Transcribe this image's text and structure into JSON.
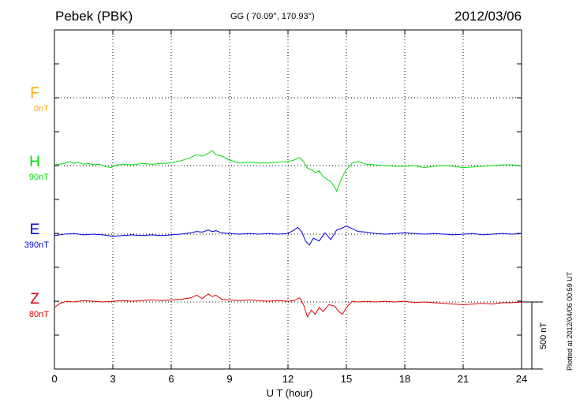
{
  "header": {
    "station": "Pebek (PBK)",
    "coords": "GG ( 70.09°, 170.93°)",
    "date": "2012/03/06"
  },
  "plotted_note": "Plotted at 2012/04/06 00:59 UT",
  "chart_data": {
    "type": "line",
    "xlabel": "U T (hour)",
    "xlim": [
      0,
      24
    ],
    "x_ticks": [
      0,
      3,
      6,
      9,
      12,
      15,
      18,
      21,
      24
    ],
    "tick_labels": [
      "0",
      "3",
      "6",
      "9",
      "12",
      "15",
      "18",
      "21",
      "24"
    ],
    "scale_bar": {
      "label": "500 nT",
      "value_nT": 500
    },
    "grid": true,
    "series": [
      {
        "name": "F",
        "offset_label": "0nT",
        "color": "#FFA500",
        "x": [],
        "y": []
      },
      {
        "name": "H",
        "offset_label": "90nT",
        "color": "#00E000",
        "x": [
          0,
          0.5,
          0.8,
          1.0,
          1.2,
          1.5,
          1.8,
          2.0,
          2.3,
          2.6,
          2.9,
          3.2,
          3.5,
          4.0,
          4.5,
          5.0,
          5.5,
          6.0,
          6.5,
          7.0,
          7.3,
          7.6,
          7.9,
          8.1,
          8.3,
          8.6,
          9.0,
          9.5,
          10.0,
          10.5,
          11.0,
          11.5,
          12.0,
          12.3,
          12.6,
          12.8,
          13.0,
          13.2,
          13.4,
          13.6,
          13.8,
          14.0,
          14.2,
          14.4,
          14.5,
          14.6,
          14.8,
          15.0,
          15.3,
          15.6,
          16.0,
          16.5,
          17.0,
          17.5,
          18.0,
          18.5,
          19.0,
          19.5,
          20.0,
          20.5,
          21.0,
          21.5,
          22.0,
          22.5,
          23.0,
          23.5,
          24.0
        ],
        "y": [
          5,
          15,
          30,
          15,
          25,
          10,
          15,
          5,
          10,
          -5,
          -15,
          5,
          10,
          5,
          15,
          10,
          15,
          20,
          35,
          60,
          80,
          70,
          90,
          110,
          80,
          70,
          40,
          20,
          25,
          20,
          20,
          25,
          30,
          40,
          60,
          30,
          -20,
          -30,
          -50,
          -40,
          -80,
          -100,
          -120,
          -160,
          -190,
          -150,
          -80,
          -30,
          20,
          30,
          10,
          5,
          0,
          -5,
          -5,
          0,
          -15,
          -5,
          0,
          -5,
          -15,
          -10,
          -5,
          0,
          5,
          5,
          0
        ]
      },
      {
        "name": "E",
        "offset_label": "390nT",
        "color": "#0000DD",
        "x": [
          0,
          0.5,
          1.0,
          1.5,
          2.0,
          2.5,
          3.0,
          3.5,
          4.0,
          4.5,
          5.0,
          5.5,
          6.0,
          6.5,
          7.0,
          7.3,
          7.6,
          7.9,
          8.1,
          8.3,
          8.6,
          9.0,
          9.5,
          10.0,
          10.5,
          11.0,
          11.5,
          12.0,
          12.3,
          12.5,
          12.7,
          12.9,
          13.1,
          13.3,
          13.6,
          13.9,
          14.2,
          14.5,
          14.7,
          15.0,
          15.3,
          15.6,
          16.0,
          16.5,
          17.0,
          17.5,
          18.0,
          18.5,
          19.0,
          19.5,
          20.0,
          20.5,
          21.0,
          21.5,
          22.0,
          22.5,
          23.0,
          23.5,
          24.0
        ],
        "y": [
          -10,
          0,
          5,
          -5,
          0,
          -5,
          -15,
          -10,
          -5,
          -10,
          -5,
          -10,
          -5,
          0,
          10,
          20,
          15,
          30,
          20,
          25,
          10,
          5,
          0,
          5,
          0,
          5,
          0,
          5,
          30,
          50,
          20,
          -50,
          -80,
          -30,
          -50,
          10,
          -40,
          30,
          40,
          60,
          40,
          20,
          15,
          5,
          0,
          5,
          10,
          5,
          0,
          5,
          0,
          -5,
          0,
          5,
          -5,
          0,
          5,
          0,
          5
        ]
      },
      {
        "name": "Z",
        "offset_label": "80nT",
        "color": "#E00000",
        "x": [
          0,
          0.3,
          0.6,
          1.0,
          1.5,
          2.0,
          2.5,
          3.0,
          3.5,
          4.0,
          4.5,
          5.0,
          5.5,
          6.0,
          6.5,
          7.0,
          7.3,
          7.6,
          7.9,
          8.1,
          8.3,
          8.6,
          9.0,
          9.5,
          10.0,
          10.5,
          11.0,
          11.5,
          12.0,
          12.3,
          12.6,
          12.8,
          13.0,
          13.2,
          13.4,
          13.6,
          13.8,
          14.1,
          14.4,
          14.6,
          14.8,
          15.0,
          15.3,
          15.6,
          16.0,
          16.5,
          17.0,
          17.5,
          18.0,
          18.5,
          19.0,
          19.5,
          20.0,
          20.5,
          21.0,
          21.5,
          22.0,
          22.5,
          23.0,
          23.5,
          24.0
        ],
        "y": [
          -40,
          -10,
          5,
          0,
          10,
          5,
          0,
          5,
          10,
          5,
          10,
          15,
          10,
          15,
          20,
          30,
          50,
          25,
          60,
          40,
          50,
          20,
          15,
          10,
          15,
          10,
          5,
          10,
          5,
          10,
          30,
          -20,
          -110,
          -60,
          -90,
          -40,
          -70,
          -20,
          -30,
          -70,
          -90,
          -40,
          5,
          0,
          5,
          0,
          5,
          0,
          5,
          -5,
          0,
          -5,
          -10,
          -15,
          -20,
          -15,
          -10,
          -15,
          -5,
          -5,
          0
        ]
      }
    ]
  }
}
